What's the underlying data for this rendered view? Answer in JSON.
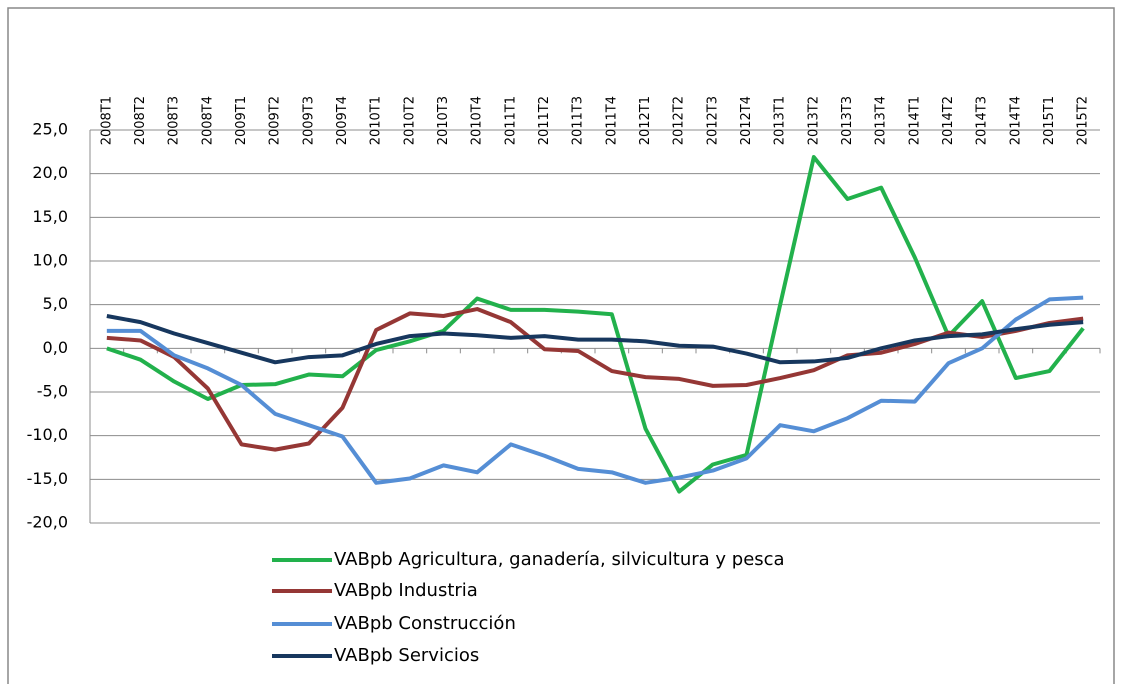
{
  "chart_data": {
    "type": "line",
    "categories": [
      "2008T1",
      "2008T2",
      "2008T3",
      "2008T4",
      "2009T1",
      "2009T2",
      "2009T3",
      "2009T4",
      "2010T1",
      "2010T2",
      "2010T3",
      "2010T4",
      "2011T1",
      "2011T2",
      "2011T3",
      "2011T4",
      "2012T1",
      "2012T2",
      "2012T3",
      "2012T4",
      "2013T1",
      "2013T2",
      "2013T3",
      "2013T4",
      "2014T1",
      "2014T2",
      "2014T3",
      "2014T4",
      "2015T1",
      "2015T2"
    ],
    "series": [
      {
        "name": "VABpb Agricultura, ganadería, silvicultura y pesca",
        "color": "#22b14c",
        "values": [
          0.0,
          -1.3,
          -3.8,
          -5.8,
          -4.2,
          -4.1,
          -3.0,
          -3.2,
          -0.2,
          0.8,
          2.0,
          5.7,
          4.4,
          4.4,
          4.2,
          3.9,
          -9.2,
          -16.4,
          -13.3,
          -12.2,
          5.0,
          21.9,
          17.1,
          18.4,
          10.4,
          1.4,
          5.4,
          -3.4,
          -2.6,
          2.3
        ]
      },
      {
        "name": "VABpb Industria",
        "color": "#953735",
        "values": [
          1.2,
          0.9,
          -1.0,
          -4.6,
          -11.0,
          -11.6,
          -10.9,
          -6.8,
          2.1,
          4.0,
          3.7,
          4.5,
          3.0,
          -0.1,
          -0.3,
          -2.6,
          -3.3,
          -3.5,
          -4.3,
          -4.2,
          -3.4,
          -2.5,
          -0.8,
          -0.5,
          0.5,
          1.8,
          1.3,
          2.0,
          2.9,
          3.4
        ]
      },
      {
        "name": "VABpb Construcción",
        "color": "#558ed5",
        "values": [
          2.0,
          2.0,
          -0.8,
          -2.3,
          -4.2,
          -7.5,
          -8.8,
          -10.1,
          -15.4,
          -14.9,
          -13.4,
          -14.2,
          -11.0,
          -12.3,
          -13.8,
          -14.2,
          -15.4,
          -14.8,
          -14.0,
          -12.6,
          -8.8,
          -9.5,
          -8.0,
          -6.0,
          -6.1,
          -1.7,
          0.0,
          3.3,
          5.6,
          5.8
        ]
      },
      {
        "name": "VABpb Servicios",
        "color": "#17375e",
        "values": [
          3.7,
          3.0,
          1.7,
          0.6,
          -0.5,
          -1.6,
          -1.0,
          -0.8,
          0.5,
          1.4,
          1.7,
          1.5,
          1.2,
          1.4,
          1.0,
          1.0,
          0.8,
          0.3,
          0.2,
          -0.6,
          -1.6,
          -1.5,
          -1.1,
          0.0,
          0.9,
          1.4,
          1.6,
          2.2,
          2.7,
          3.0
        ]
      }
    ],
    "ylim": [
      -20,
      25
    ],
    "yticks": [
      {
        "value": -20,
        "label": "-20,0"
      },
      {
        "value": -15,
        "label": "-15,0"
      },
      {
        "value": -10,
        "label": "-10,0"
      },
      {
        "value": -5,
        "label": "-5,0"
      },
      {
        "value": 0,
        "label": "0,0"
      },
      {
        "value": 5,
        "label": "5,0"
      },
      {
        "value": 10,
        "label": "10,0"
      },
      {
        "value": 15,
        "label": "15,0"
      },
      {
        "value": 20,
        "label": "20,0"
      },
      {
        "value": 25,
        "label": "25,0"
      }
    ],
    "grid": true,
    "legend": "bottom"
  }
}
